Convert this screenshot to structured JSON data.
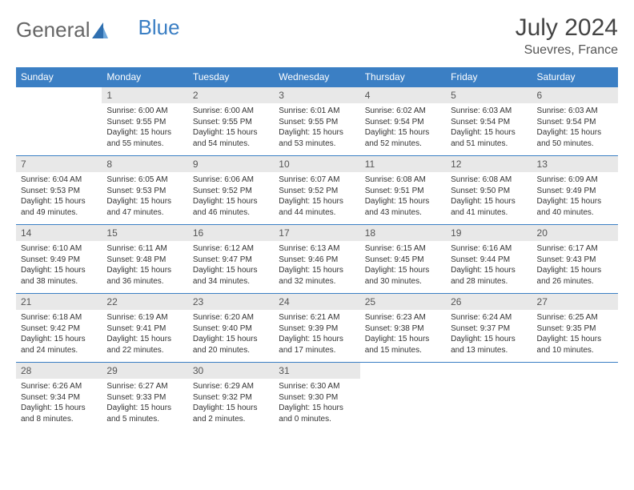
{
  "logo": {
    "text1": "General",
    "text2": "Blue"
  },
  "title": "July 2024",
  "location": "Suevres, France",
  "colors": {
    "header_bg": "#3b7fc4",
    "header_fg": "#ffffff",
    "daynum_bg": "#e8e8e8",
    "border": "#3b7fc4",
    "page_bg": "#ffffff",
    "text": "#333333"
  },
  "weekdays": [
    "Sunday",
    "Monday",
    "Tuesday",
    "Wednesday",
    "Thursday",
    "Friday",
    "Saturday"
  ],
  "weeks": [
    [
      {
        "n": "",
        "sunrise": "",
        "sunset": "",
        "daylight": ""
      },
      {
        "n": "1",
        "sunrise": "6:00 AM",
        "sunset": "9:55 PM",
        "daylight": "15 hours and 55 minutes."
      },
      {
        "n": "2",
        "sunrise": "6:00 AM",
        "sunset": "9:55 PM",
        "daylight": "15 hours and 54 minutes."
      },
      {
        "n": "3",
        "sunrise": "6:01 AM",
        "sunset": "9:55 PM",
        "daylight": "15 hours and 53 minutes."
      },
      {
        "n": "4",
        "sunrise": "6:02 AM",
        "sunset": "9:54 PM",
        "daylight": "15 hours and 52 minutes."
      },
      {
        "n": "5",
        "sunrise": "6:03 AM",
        "sunset": "9:54 PM",
        "daylight": "15 hours and 51 minutes."
      },
      {
        "n": "6",
        "sunrise": "6:03 AM",
        "sunset": "9:54 PM",
        "daylight": "15 hours and 50 minutes."
      }
    ],
    [
      {
        "n": "7",
        "sunrise": "6:04 AM",
        "sunset": "9:53 PM",
        "daylight": "15 hours and 49 minutes."
      },
      {
        "n": "8",
        "sunrise": "6:05 AM",
        "sunset": "9:53 PM",
        "daylight": "15 hours and 47 minutes."
      },
      {
        "n": "9",
        "sunrise": "6:06 AM",
        "sunset": "9:52 PM",
        "daylight": "15 hours and 46 minutes."
      },
      {
        "n": "10",
        "sunrise": "6:07 AM",
        "sunset": "9:52 PM",
        "daylight": "15 hours and 44 minutes."
      },
      {
        "n": "11",
        "sunrise": "6:08 AM",
        "sunset": "9:51 PM",
        "daylight": "15 hours and 43 minutes."
      },
      {
        "n": "12",
        "sunrise": "6:08 AM",
        "sunset": "9:50 PM",
        "daylight": "15 hours and 41 minutes."
      },
      {
        "n": "13",
        "sunrise": "6:09 AM",
        "sunset": "9:49 PM",
        "daylight": "15 hours and 40 minutes."
      }
    ],
    [
      {
        "n": "14",
        "sunrise": "6:10 AM",
        "sunset": "9:49 PM",
        "daylight": "15 hours and 38 minutes."
      },
      {
        "n": "15",
        "sunrise": "6:11 AM",
        "sunset": "9:48 PM",
        "daylight": "15 hours and 36 minutes."
      },
      {
        "n": "16",
        "sunrise": "6:12 AM",
        "sunset": "9:47 PM",
        "daylight": "15 hours and 34 minutes."
      },
      {
        "n": "17",
        "sunrise": "6:13 AM",
        "sunset": "9:46 PM",
        "daylight": "15 hours and 32 minutes."
      },
      {
        "n": "18",
        "sunrise": "6:15 AM",
        "sunset": "9:45 PM",
        "daylight": "15 hours and 30 minutes."
      },
      {
        "n": "19",
        "sunrise": "6:16 AM",
        "sunset": "9:44 PM",
        "daylight": "15 hours and 28 minutes."
      },
      {
        "n": "20",
        "sunrise": "6:17 AM",
        "sunset": "9:43 PM",
        "daylight": "15 hours and 26 minutes."
      }
    ],
    [
      {
        "n": "21",
        "sunrise": "6:18 AM",
        "sunset": "9:42 PM",
        "daylight": "15 hours and 24 minutes."
      },
      {
        "n": "22",
        "sunrise": "6:19 AM",
        "sunset": "9:41 PM",
        "daylight": "15 hours and 22 minutes."
      },
      {
        "n": "23",
        "sunrise": "6:20 AM",
        "sunset": "9:40 PM",
        "daylight": "15 hours and 20 minutes."
      },
      {
        "n": "24",
        "sunrise": "6:21 AM",
        "sunset": "9:39 PM",
        "daylight": "15 hours and 17 minutes."
      },
      {
        "n": "25",
        "sunrise": "6:23 AM",
        "sunset": "9:38 PM",
        "daylight": "15 hours and 15 minutes."
      },
      {
        "n": "26",
        "sunrise": "6:24 AM",
        "sunset": "9:37 PM",
        "daylight": "15 hours and 13 minutes."
      },
      {
        "n": "27",
        "sunrise": "6:25 AM",
        "sunset": "9:35 PM",
        "daylight": "15 hours and 10 minutes."
      }
    ],
    [
      {
        "n": "28",
        "sunrise": "6:26 AM",
        "sunset": "9:34 PM",
        "daylight": "15 hours and 8 minutes."
      },
      {
        "n": "29",
        "sunrise": "6:27 AM",
        "sunset": "9:33 PM",
        "daylight": "15 hours and 5 minutes."
      },
      {
        "n": "30",
        "sunrise": "6:29 AM",
        "sunset": "9:32 PM",
        "daylight": "15 hours and 2 minutes."
      },
      {
        "n": "31",
        "sunrise": "6:30 AM",
        "sunset": "9:30 PM",
        "daylight": "15 hours and 0 minutes."
      },
      {
        "n": "",
        "sunrise": "",
        "sunset": "",
        "daylight": ""
      },
      {
        "n": "",
        "sunrise": "",
        "sunset": "",
        "daylight": ""
      },
      {
        "n": "",
        "sunrise": "",
        "sunset": "",
        "daylight": ""
      }
    ]
  ],
  "labels": {
    "sunrise": "Sunrise:",
    "sunset": "Sunset:",
    "daylight": "Daylight:"
  }
}
